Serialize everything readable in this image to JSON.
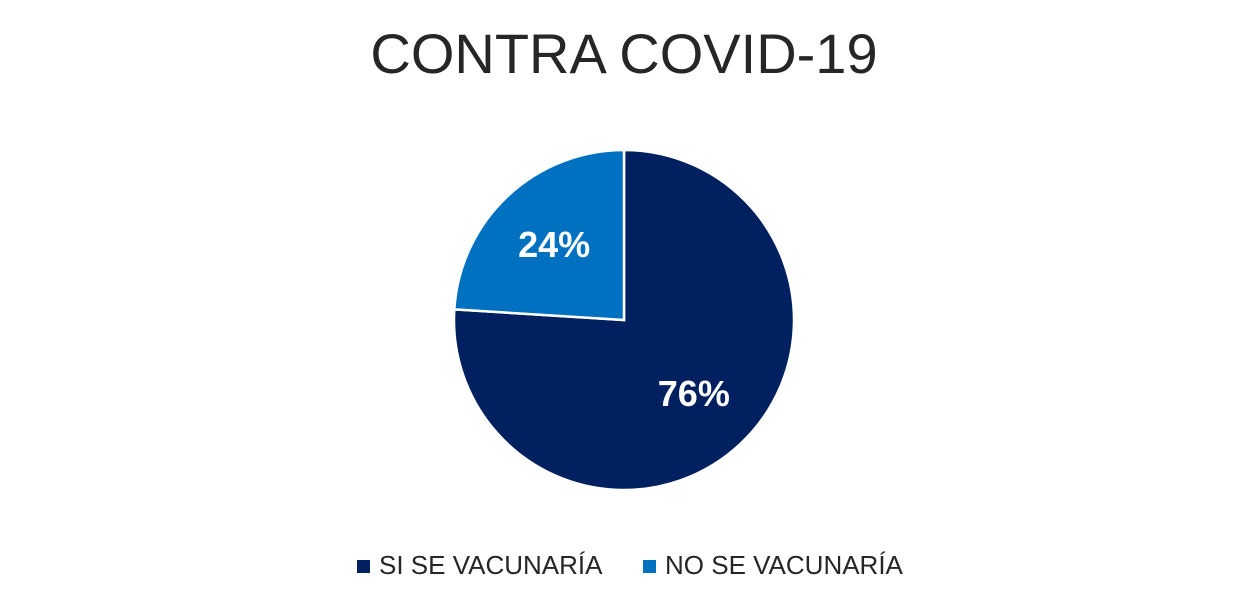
{
  "chart_data": {
    "type": "pie",
    "title": "CONTRA COVID-19",
    "categories": [
      "SI SE VACUNARÍA",
      "NO SE VACUNARÍA"
    ],
    "values": [
      76,
      24
    ],
    "value_labels": [
      "76%",
      "24%"
    ],
    "colors": [
      "#002060",
      "#0070c0"
    ]
  }
}
